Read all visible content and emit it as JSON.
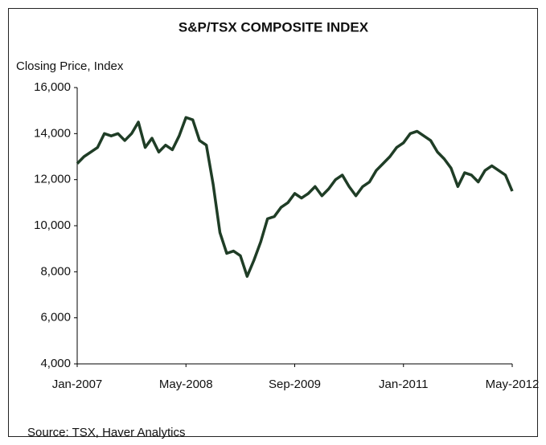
{
  "chart_data": {
    "type": "line",
    "title": "S&P/TSX COMPOSITE INDEX",
    "y_label": "Closing Price, Index",
    "source": "Source: TSX, Haver Analytics",
    "x": [
      "Jan-2007",
      "Feb-2007",
      "Mar-2007",
      "Apr-2007",
      "May-2007",
      "Jun-2007",
      "Jul-2007",
      "Aug-2007",
      "Sep-2007",
      "Oct-2007",
      "Nov-2007",
      "Dec-2007",
      "Jan-2008",
      "Feb-2008",
      "Mar-2008",
      "Apr-2008",
      "May-2008",
      "Jun-2008",
      "Jul-2008",
      "Aug-2008",
      "Sep-2008",
      "Oct-2008",
      "Nov-2008",
      "Dec-2008",
      "Jan-2009",
      "Feb-2009",
      "Mar-2009",
      "Apr-2009",
      "May-2009",
      "Jun-2009",
      "Jul-2009",
      "Aug-2009",
      "Sep-2009",
      "Oct-2009",
      "Nov-2009",
      "Dec-2009",
      "Jan-2010",
      "Feb-2010",
      "Mar-2010",
      "Apr-2010",
      "May-2010",
      "Jun-2010",
      "Jul-2010",
      "Aug-2010",
      "Sep-2010",
      "Oct-2010",
      "Nov-2010",
      "Dec-2010",
      "Jan-2011",
      "Feb-2011",
      "Mar-2011",
      "Apr-2011",
      "May-2011",
      "Jun-2011",
      "Jul-2011",
      "Aug-2011",
      "Sep-2011",
      "Oct-2011",
      "Nov-2011",
      "Dec-2011",
      "Jan-2012",
      "Feb-2012",
      "Mar-2012",
      "Apr-2012",
      "May-2012"
    ],
    "series": [
      {
        "name": "S&P/TSX Composite",
        "color": "#1f3d26",
        "values": [
          12700,
          13000,
          13200,
          13400,
          14000,
          13900,
          14000,
          13700,
          14000,
          14500,
          13400,
          13800,
          13200,
          13500,
          13300,
          13900,
          14700,
          14600,
          13700,
          13500,
          11800,
          9700,
          8800,
          8900,
          8700,
          7800,
          8500,
          9300,
          10300,
          10400,
          10800,
          11000,
          11400,
          11200,
          11400,
          11700,
          11300,
          11600,
          12000,
          12200,
          11700,
          11300,
          11700,
          11900,
          12400,
          12700,
          13000,
          13400,
          13600,
          14000,
          14100,
          13900,
          13700,
          13200,
          12900,
          12500,
          11700,
          12300,
          12200,
          11900,
          12400,
          12600,
          12400,
          12200,
          11500
        ]
      }
    ],
    "xticks": [
      "Jan-2007",
      "May-2008",
      "Sep-2009",
      "Jan-2011",
      "May-2012"
    ],
    "ylim": [
      4000,
      16000
    ],
    "yticks": [
      {
        "value": 4000,
        "label": "4,000"
      },
      {
        "value": 6000,
        "label": "6,000"
      },
      {
        "value": 8000,
        "label": "8,000"
      },
      {
        "value": 10000,
        "label": "10,000"
      },
      {
        "value": 12000,
        "label": "12,000"
      },
      {
        "value": 14000,
        "label": "14,000"
      },
      {
        "value": 16000,
        "label": "16,000"
      }
    ],
    "grid": false
  }
}
